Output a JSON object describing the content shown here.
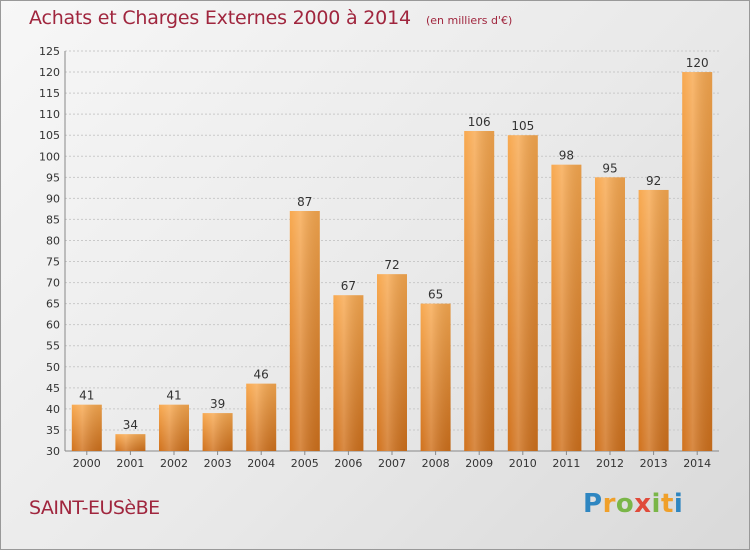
{
  "title": "Achats et Charges Externes 2000 à 2014",
  "unit_label": "(en milliers d'€)",
  "commune": "SAINT-EUSèBE",
  "logo_text": "Proxiti",
  "colors": {
    "title": "#a0263e",
    "bar_light": "#f7a64e",
    "bar_dark": "#d3731e",
    "grid": "#c8c8c8",
    "background": "#eeeeee"
  },
  "chart_data": {
    "type": "bar",
    "categories": [
      "2000",
      "2001",
      "2002",
      "2003",
      "2004",
      "2005",
      "2006",
      "2007",
      "2008",
      "2009",
      "2010",
      "2011",
      "2012",
      "2013",
      "2014"
    ],
    "values": [
      41,
      34,
      41,
      39,
      46,
      87,
      67,
      72,
      65,
      106,
      105,
      98,
      95,
      92,
      120
    ],
    "xlabel": "",
    "ylabel": "",
    "ylim": [
      30,
      125
    ],
    "yticks": [
      30,
      35,
      40,
      45,
      50,
      55,
      60,
      65,
      70,
      75,
      80,
      85,
      90,
      95,
      100,
      105,
      110,
      115,
      120,
      125
    ],
    "grid": true,
    "data_labels": true
  }
}
